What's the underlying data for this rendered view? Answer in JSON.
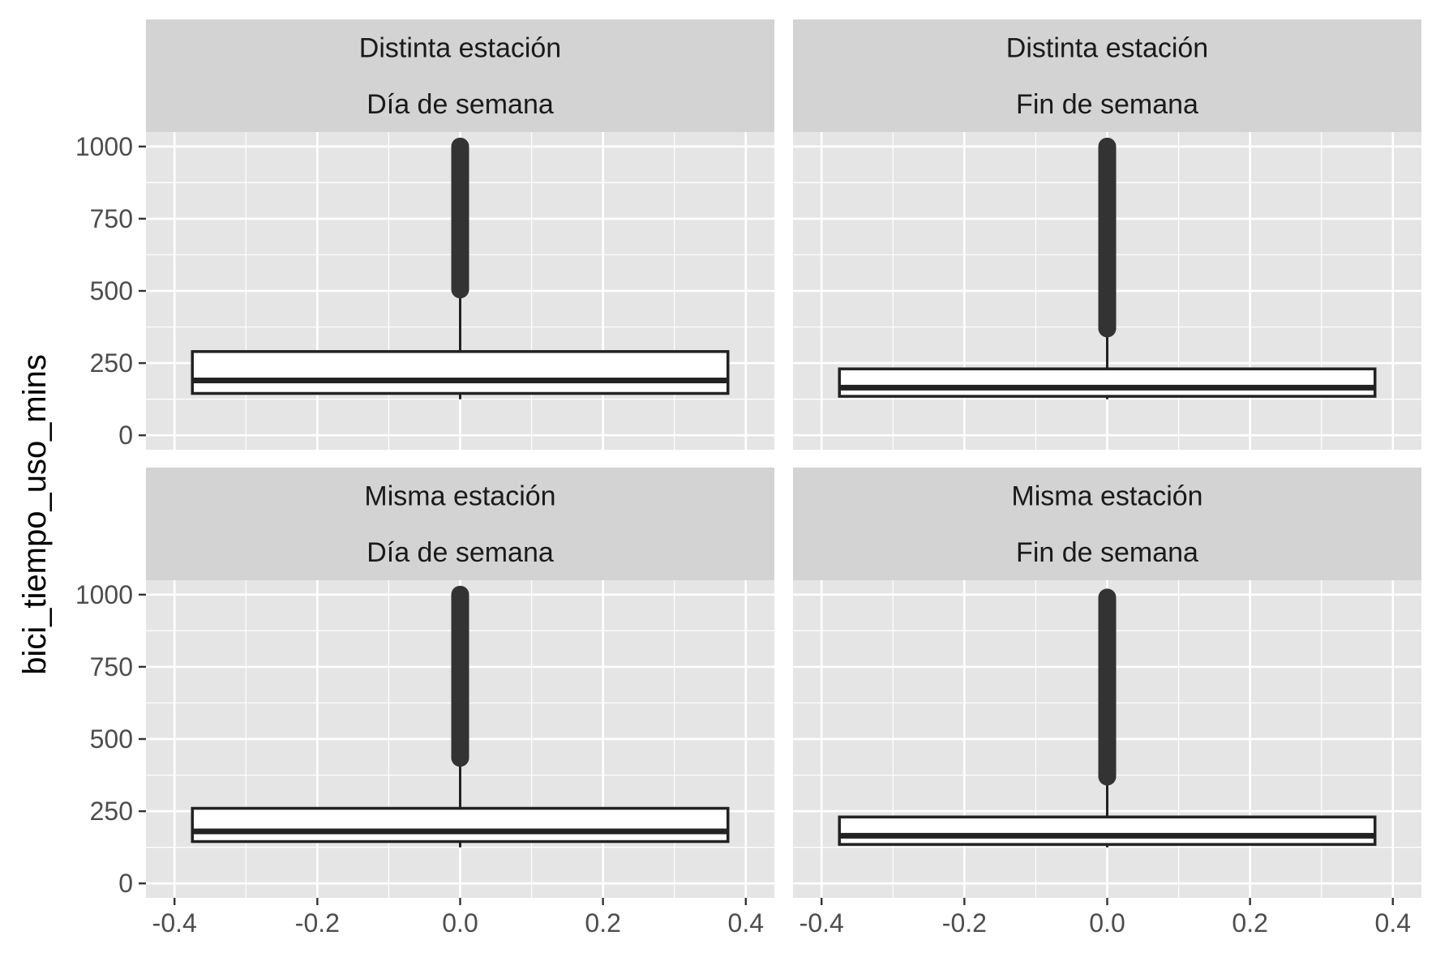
{
  "chart_data": {
    "type": "boxplot",
    "ylabel": "bici_tiempo_uso_mins",
    "xlabel": "",
    "xlim": [
      -0.4,
      0.4
    ],
    "ylim": [
      0,
      1000
    ],
    "x_ticks": [
      "-0.4",
      "-0.2",
      "0.0",
      "0.2",
      "0.4"
    ],
    "y_ticks": [
      "0",
      "250",
      "500",
      "750",
      "1000"
    ],
    "box_x_range": [
      -0.375,
      0.375
    ],
    "colors": {
      "panel_bg": "#e5e5e5",
      "strip_bg": "#d3d3d3",
      "grid": "#ffffff",
      "box_line": "#222222",
      "box_fill": "#ffffff",
      "outlier": "#333333"
    },
    "panels": [
      {
        "strip_top": "Distinta estación",
        "strip_bottom": "Día de semana",
        "stats": {
          "lower_whisker": 125,
          "q1": 145,
          "median": 190,
          "q3": 290,
          "upper_whisker": 505,
          "outlier_min": 505,
          "outlier_max": 1000
        }
      },
      {
        "strip_top": "Distinta estación",
        "strip_bottom": "Fin de semana",
        "stats": {
          "lower_whisker": 125,
          "q1": 135,
          "median": 165,
          "q3": 230,
          "upper_whisker": 370,
          "outlier_min": 370,
          "outlier_max": 1000
        }
      },
      {
        "strip_top": "Misma estación",
        "strip_bottom": "Día de semana",
        "stats": {
          "lower_whisker": 125,
          "q1": 145,
          "median": 180,
          "q3": 260,
          "upper_whisker": 435,
          "outlier_min": 435,
          "outlier_max": 1000
        }
      },
      {
        "strip_top": "Misma estación",
        "strip_bottom": "Fin de semana",
        "stats": {
          "lower_whisker": 125,
          "q1": 135,
          "median": 165,
          "q3": 230,
          "upper_whisker": 370,
          "outlier_min": 370,
          "outlier_max": 990
        }
      }
    ]
  }
}
